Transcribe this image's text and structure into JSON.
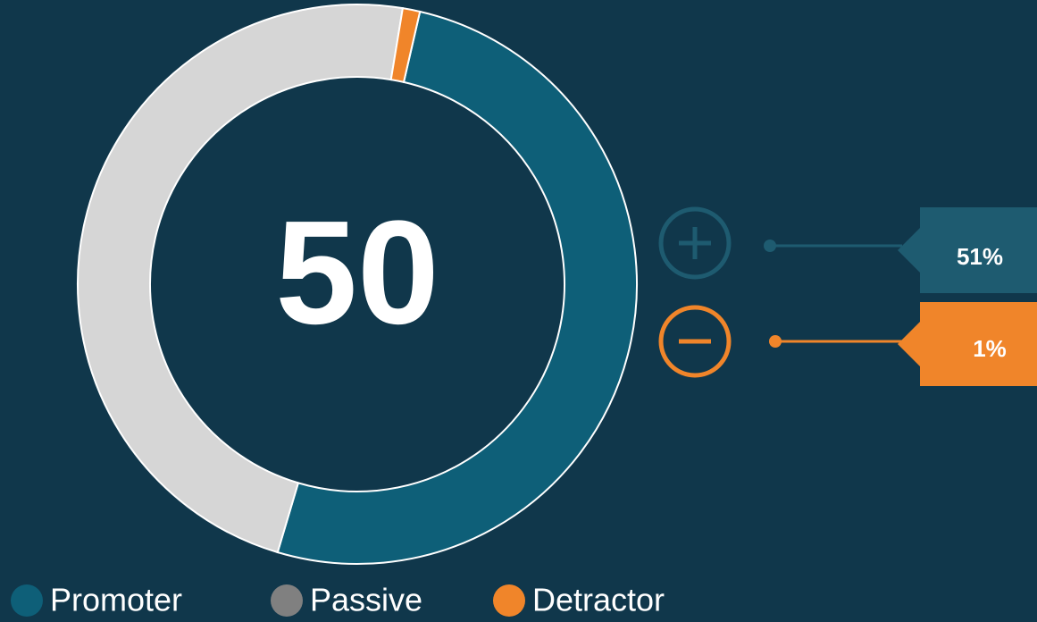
{
  "chart_data": {
    "type": "donut",
    "score": 50,
    "categories": [
      "Promoter",
      "Passive",
      "Detractor"
    ],
    "values": [
      51,
      48,
      1
    ],
    "value_labels": [
      "51%",
      null,
      "1%"
    ],
    "colors": [
      "#0e5f78",
      "#d6d6d6",
      "#f0852a"
    ],
    "legend": "bottom"
  }
}
